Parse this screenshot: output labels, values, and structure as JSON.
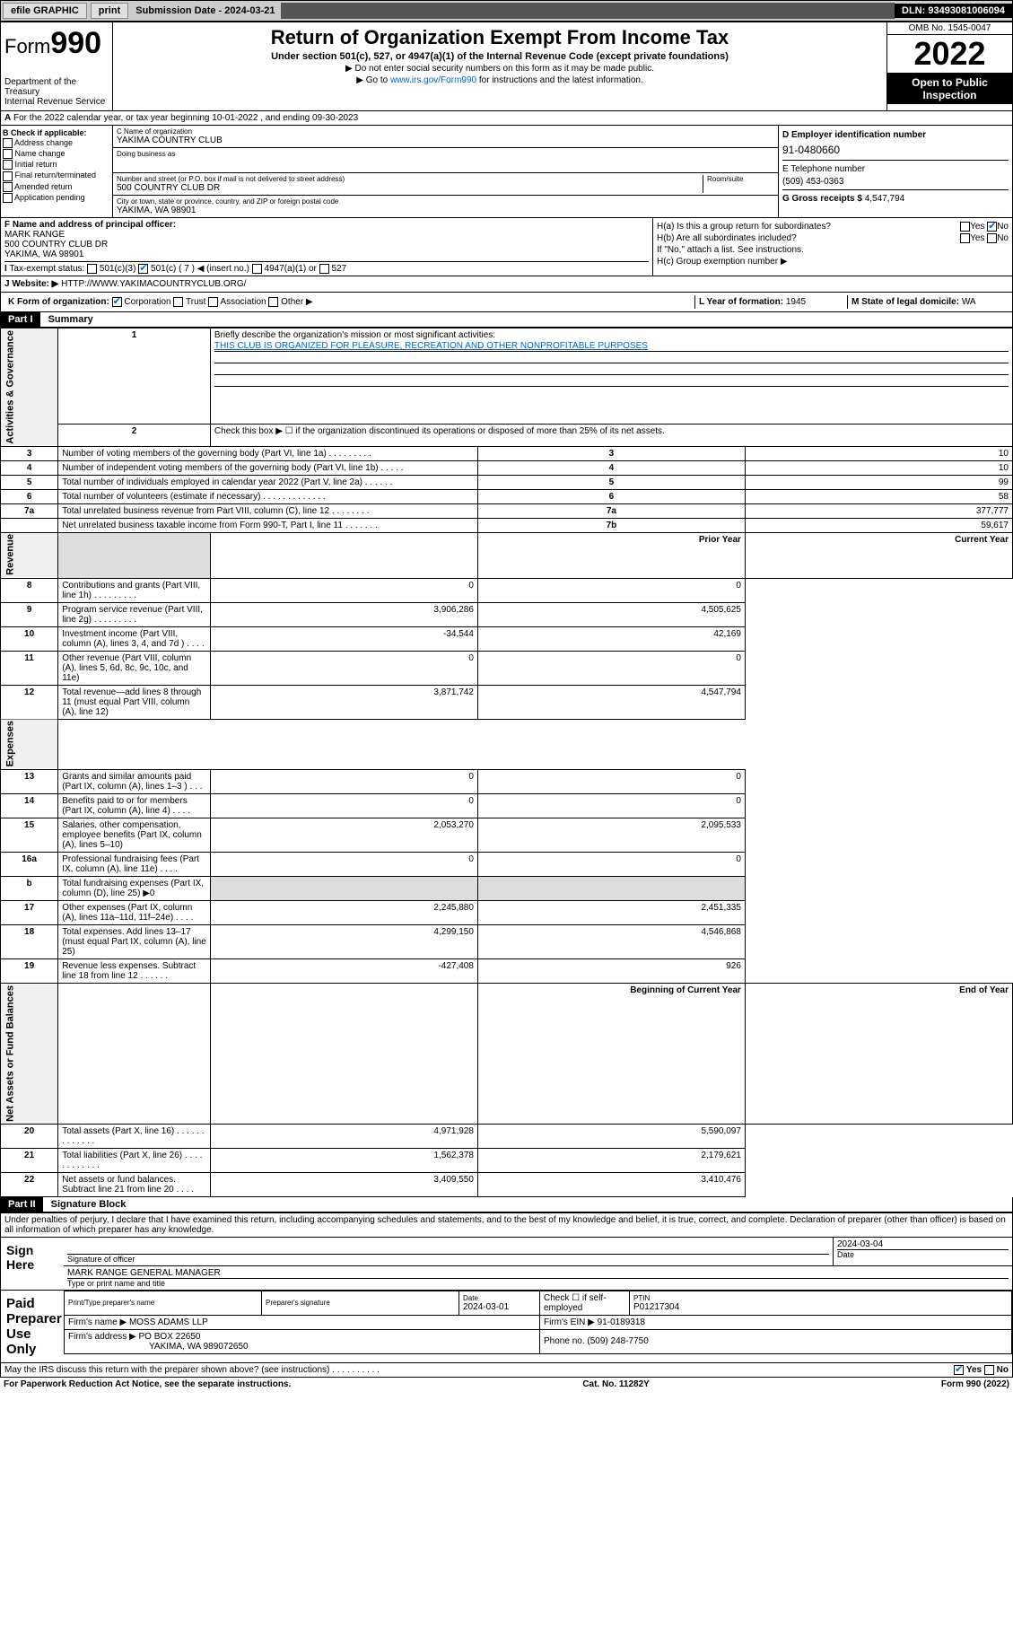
{
  "topbar": {
    "efile": "efile GRAPHIC",
    "print": "print",
    "sub_label": "Submission Date - 2024-03-21",
    "dln": "DLN: 93493081006094"
  },
  "header": {
    "form_label": "Form",
    "form_num": "990",
    "dept": "Department of the Treasury",
    "irs": "Internal Revenue Service",
    "title": "Return of Organization Exempt From Income Tax",
    "subtitle": "Under section 501(c), 527, or 4947(a)(1) of the Internal Revenue Code (except private foundations)",
    "note1": "▶ Do not enter social security numbers on this form as it may be made public.",
    "note2_pre": "▶ Go to ",
    "note2_link": "www.irs.gov/Form990",
    "note2_post": " for instructions and the latest information.",
    "omb": "OMB No. 1545-0047",
    "year": "2022",
    "inspection": "Open to Public Inspection"
  },
  "row_a": {
    "text": "For the 2022 calendar year, or tax year beginning 10-01-2022   , and ending 09-30-2023",
    "prefix": "A"
  },
  "col_b": {
    "hdr": "B Check if applicable:",
    "items": [
      "Address change",
      "Name change",
      "Initial return",
      "Final return/terminated",
      "Amended return",
      "Application pending"
    ]
  },
  "col_c": {
    "name_lbl": "C Name of organization",
    "name": "YAKIMA COUNTRY CLUB",
    "dba_lbl": "Doing business as",
    "dba": "",
    "addr_lbl": "Number and street (or P.O. box if mail is not delivered to street address)",
    "room_lbl": "Room/suite",
    "addr": "500 COUNTRY CLUB DR",
    "city_lbl": "City or town, state or province, country, and ZIP or foreign postal code",
    "city": "YAKIMA, WA  98901"
  },
  "col_de": {
    "d_lbl": "D Employer identification number",
    "ein": "91-0480660",
    "e_lbl": "E Telephone number",
    "phone": "(509) 453-0363",
    "g_lbl": "G Gross receipts $",
    "gross": "4,547,794"
  },
  "row_f": {
    "lbl": "F Name and address of principal officer:",
    "name": "MARK RANGE",
    "addr1": "500 COUNTRY CLUB DR",
    "addr2": "YAKIMA, WA  98901"
  },
  "row_h": {
    "ha": "H(a)  Is this a group return for subordinates?",
    "hb": "H(b)  Are all subordinates included?",
    "hb_note": "If \"No,\" attach a list. See instructions.",
    "hc": "H(c)  Group exemption number ▶",
    "yes": "Yes",
    "no": "No"
  },
  "row_i": {
    "lbl": "Tax-exempt status:",
    "c3": "501(c)(3)",
    "c7": "501(c) ( 7 ) ◀ (insert no.)",
    "a1": "4947(a)(1) or",
    "s527": "527"
  },
  "row_j": {
    "lbl": "Website: ▶",
    "url": "HTTP://WWW.YAKIMACOUNTRYCLUB.ORG/"
  },
  "row_k": {
    "lbl": "K Form of organization:",
    "corp": "Corporation",
    "trust": "Trust",
    "assoc": "Association",
    "other": "Other ▶",
    "l_lbl": "L Year of formation:",
    "l_val": "1945",
    "m_lbl": "M State of legal domicile:",
    "m_val": "WA"
  },
  "part1": {
    "hdr": "Part I",
    "title": "Summary",
    "q1": "Briefly describe the organization's mission or most significant activities:",
    "mission": "THIS CLUB IS ORGANIZED FOR PLEASURE, RECREATION AND OTHER NONPROFITABLE PURPOSES",
    "q2": "Check this box ▶ ☐  if the organization discontinued its operations or disposed of more than 25% of its net assets.",
    "rows_gov": [
      {
        "n": "3",
        "d": "Number of voting members of the governing body (Part VI, line 1a)  .    .    .    .    .    .    .    .    .",
        "box": "3",
        "v": "10"
      },
      {
        "n": "4",
        "d": "Number of independent voting members of the governing body (Part VI, line 1b)  .    .    .    .    .",
        "box": "4",
        "v": "10"
      },
      {
        "n": "5",
        "d": "Total number of individuals employed in calendar year 2022 (Part V, line 2a)  .    .    .    .    .    .",
        "box": "5",
        "v": "99"
      },
      {
        "n": "6",
        "d": "Total number of volunteers (estimate if necessary)  .    .    .    .    .    .    .    .    .    .    .    .    .",
        "box": "6",
        "v": "58"
      },
      {
        "n": "7a",
        "d": "Total unrelated business revenue from Part VIII, column (C), line 12  .    .    .    .    .    .    .    .",
        "box": "7a",
        "v": "377,777"
      },
      {
        "n": "",
        "d": "Net unrelated business taxable income from Form 990-T, Part I, line 11  .    .    .    .    .    .    .",
        "box": "7b",
        "v": "59,617"
      }
    ],
    "hdr_py": "Prior Year",
    "hdr_cy": "Current Year",
    "rows_rev": [
      {
        "n": "8",
        "d": "Contributions and grants (Part VIII, line 1h)  .    .    .    .    .    .    .    .    .",
        "py": "0",
        "cy": "0"
      },
      {
        "n": "9",
        "d": "Program service revenue (Part VIII, line 2g)  .    .    .    .    .    .    .    .    .",
        "py": "3,906,286",
        "cy": "4,505,625"
      },
      {
        "n": "10",
        "d": "Investment income (Part VIII, column (A), lines 3, 4, and 7d )  .    .    .    .",
        "py": "-34,544",
        "cy": "42,169"
      },
      {
        "n": "11",
        "d": "Other revenue (Part VIII, column (A), lines 5, 6d, 8c, 9c, 10c, and 11e)",
        "py": "0",
        "cy": "0"
      },
      {
        "n": "12",
        "d": "Total revenue—add lines 8 through 11 (must equal Part VIII, column (A), line 12)",
        "py": "3,871,742",
        "cy": "4,547,794"
      }
    ],
    "rows_exp": [
      {
        "n": "13",
        "d": "Grants and similar amounts paid (Part IX, column (A), lines 1–3 )  .    .    .",
        "py": "0",
        "cy": "0"
      },
      {
        "n": "14",
        "d": "Benefits paid to or for members (Part IX, column (A), line 4)  .    .    .    .",
        "py": "0",
        "cy": "0"
      },
      {
        "n": "15",
        "d": "Salaries, other compensation, employee benefits (Part IX, column (A), lines 5–10)",
        "py": "2,053,270",
        "cy": "2,095,533"
      },
      {
        "n": "16a",
        "d": "Professional fundraising fees (Part IX, column (A), line 11e)  .    .    .    .",
        "py": "0",
        "cy": "0"
      },
      {
        "n": "b",
        "d": "Total fundraising expenses (Part IX, column (D), line 25) ▶0",
        "py": "",
        "cy": ""
      },
      {
        "n": "17",
        "d": "Other expenses (Part IX, column (A), lines 11a–11d, 11f–24e)  .    .    .    .",
        "py": "2,245,880",
        "cy": "2,451,335"
      },
      {
        "n": "18",
        "d": "Total expenses. Add lines 13–17 (must equal Part IX, column (A), line 25)",
        "py": "4,299,150",
        "cy": "4,546,868"
      },
      {
        "n": "19",
        "d": "Revenue less expenses. Subtract line 18 from line 12  .    .    .    .    .    .",
        "py": "-427,408",
        "cy": "926"
      }
    ],
    "hdr_boy": "Beginning of Current Year",
    "hdr_eoy": "End of Year",
    "rows_net": [
      {
        "n": "20",
        "d": "Total assets (Part X, line 16)  .    .    .    .    .    .    .    .    .    .    .    .    .",
        "py": "4,971,928",
        "cy": "5,590,097"
      },
      {
        "n": "21",
        "d": "Total liabilities (Part X, line 26)  .    .    .    .    .    .    .    .    .    .    .    .",
        "py": "1,562,378",
        "cy": "2,179,621"
      },
      {
        "n": "22",
        "d": "Net assets or fund balances. Subtract line 21 from line 20  .    .    .    .",
        "py": "3,409,550",
        "cy": "3,410,476"
      }
    ],
    "vlabels": {
      "gov": "Activities & Governance",
      "rev": "Revenue",
      "exp": "Expenses",
      "net": "Net Assets or Fund Balances"
    }
  },
  "part2": {
    "hdr": "Part II",
    "title": "Signature Block",
    "penalty": "Under penalties of perjury, I declare that I have examined this return, including accompanying schedules and statements, and to the best of my knowledge and belief, it is true, correct, and complete. Declaration of preparer (other than officer) is based on all information of which preparer has any knowledge.",
    "sign_here": "Sign Here",
    "sig_officer": "Signature of officer",
    "sig_date": "2024-03-04",
    "date_lbl": "Date",
    "officer_name": "MARK RANGE  GENERAL MANAGER",
    "name_lbl": "Type or print name and title",
    "paid": "Paid Preparer Use Only",
    "prep_name_lbl": "Print/Type preparer's name",
    "prep_sig_lbl": "Preparer's signature",
    "prep_date_lbl": "Date",
    "prep_date": "2024-03-01",
    "check_lbl": "Check ☐ if self-employed",
    "ptin_lbl": "PTIN",
    "ptin": "P01217304",
    "firm_name_lbl": "Firm's name    ▶",
    "firm_name": "MOSS ADAMS LLP",
    "firm_ein_lbl": "Firm's EIN ▶",
    "firm_ein": "91-0189318",
    "firm_addr_lbl": "Firm's address ▶",
    "firm_addr1": "PO BOX 22650",
    "firm_addr2": "YAKIMA, WA  989072650",
    "firm_phone_lbl": "Phone no.",
    "firm_phone": "(509) 248-7750"
  },
  "footer": {
    "discuss": "May the IRS discuss this return with the preparer shown above? (see instructions)   .    .    .    .    .    .    .    .    .    .",
    "yes": "Yes",
    "no": "No",
    "pra": "For Paperwork Reduction Act Notice, see the separate instructions.",
    "cat": "Cat. No. 11282Y",
    "form": "Form 990 (2022)"
  }
}
